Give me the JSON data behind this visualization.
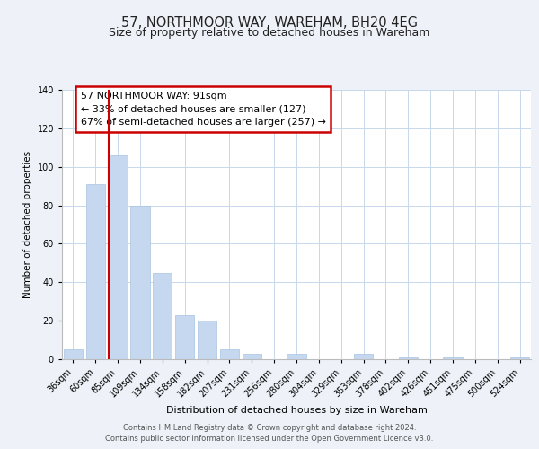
{
  "title": "57, NORTHMOOR WAY, WAREHAM, BH20 4EG",
  "subtitle": "Size of property relative to detached houses in Wareham",
  "xlabel": "Distribution of detached houses by size in Wareham",
  "ylabel": "Number of detached properties",
  "bar_labels": [
    "36sqm",
    "60sqm",
    "85sqm",
    "109sqm",
    "134sqm",
    "158sqm",
    "182sqm",
    "207sqm",
    "231sqm",
    "256sqm",
    "280sqm",
    "304sqm",
    "329sqm",
    "353sqm",
    "378sqm",
    "402sqm",
    "426sqm",
    "451sqm",
    "475sqm",
    "500sqm",
    "524sqm"
  ],
  "bar_values": [
    5,
    91,
    106,
    80,
    45,
    23,
    20,
    5,
    3,
    0,
    3,
    0,
    0,
    3,
    0,
    1,
    0,
    1,
    0,
    0,
    1
  ],
  "bar_color": "#c5d8f0",
  "bar_edge_color": "#a8c4e0",
  "vline_color": "#cc0000",
  "vline_idx": 2,
  "annotation_line1": "57 NORTHMOOR WAY: 91sqm",
  "annotation_line2": "← 33% of detached houses are smaller (127)",
  "annotation_line3": "67% of semi-detached houses are larger (257) →",
  "ylim": [
    0,
    140
  ],
  "yticks": [
    0,
    20,
    40,
    60,
    80,
    100,
    120,
    140
  ],
  "bg_color": "#eef2f8",
  "plot_bg_color": "#ffffff",
  "footer_line1": "Contains HM Land Registry data © Crown copyright and database right 2024.",
  "footer_line2": "Contains public sector information licensed under the Open Government Licence v3.0.",
  "title_fontsize": 10.5,
  "subtitle_fontsize": 9,
  "xlabel_fontsize": 8,
  "ylabel_fontsize": 7.5,
  "tick_fontsize": 7,
  "annotation_fontsize": 8,
  "footer_fontsize": 6
}
